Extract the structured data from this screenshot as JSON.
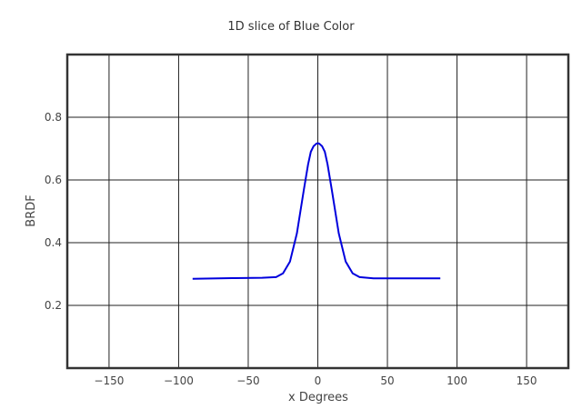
{
  "chart_data": {
    "type": "line",
    "title": "1D slice of Blue Color",
    "xlabel": "x Degrees",
    "ylabel": "BRDF",
    "xlim": [
      -180,
      180
    ],
    "ylim": [
      0,
      1.0
    ],
    "xticks": [
      -150,
      -100,
      -50,
      0,
      50,
      100,
      150
    ],
    "xtick_labels": [
      "−150",
      "−100",
      "−50",
      "0",
      "50",
      "100",
      "150"
    ],
    "yticks": [
      0.2,
      0.4,
      0.6,
      0.8
    ],
    "ytick_labels": [
      "0.2",
      "0.4",
      "0.6",
      "0.8"
    ],
    "grid": true,
    "series": [
      {
        "color": "#0000dd",
        "x": [
          -90,
          -60,
          -40,
          -30,
          -25,
          -20,
          -15,
          -10,
          -7,
          -5,
          -3,
          -1,
          0,
          1,
          3,
          5,
          7,
          10,
          15,
          20,
          25,
          30,
          40,
          60,
          88
        ],
        "y": [
          0.285,
          0.287,
          0.288,
          0.29,
          0.302,
          0.34,
          0.43,
          0.57,
          0.65,
          0.69,
          0.708,
          0.716,
          0.717,
          0.716,
          0.708,
          0.69,
          0.65,
          0.57,
          0.43,
          0.34,
          0.302,
          0.29,
          0.286,
          0.286,
          0.286
        ]
      }
    ]
  }
}
